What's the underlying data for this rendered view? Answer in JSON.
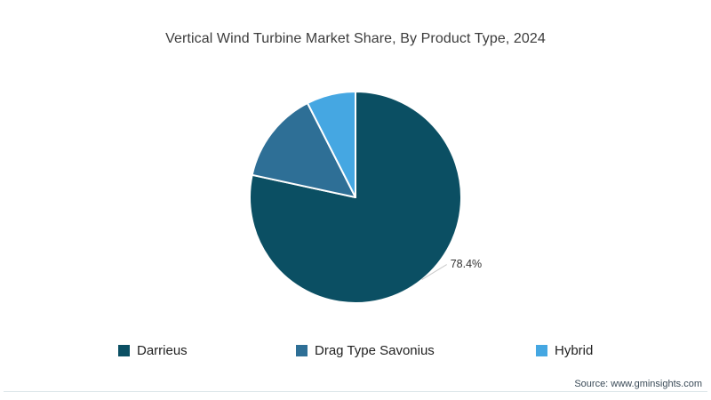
{
  "chart_data": {
    "type": "pie",
    "title": "Vertical Wind Turbine Market Share, By Product Type, 2024",
    "labels": [
      "Darrieus",
      "Drag Type Savonius",
      "Hybrid"
    ],
    "values": [
      78.4,
      14.1,
      7.5
    ],
    "colors": [
      "#0b4f63",
      "#2e6f96",
      "#45a7e2"
    ],
    "data_labels": [
      "78.4%",
      "",
      ""
    ],
    "start_angle_deg": 0,
    "direction": "clockwise",
    "legend_position": "bottom",
    "label_color": "#333333",
    "connector_color": "#c9c9c9",
    "slice_border_color": "#ffffff"
  },
  "footer": {
    "source": "Source: www.gminsights.com"
  },
  "theme": {
    "frame_color": "#0d4a5f",
    "background": "#ffffff",
    "title_color": "#3c3c3c",
    "legend_text_color": "#212121",
    "source_color": "#3a4a57",
    "divider_color": "#dde6ea"
  }
}
